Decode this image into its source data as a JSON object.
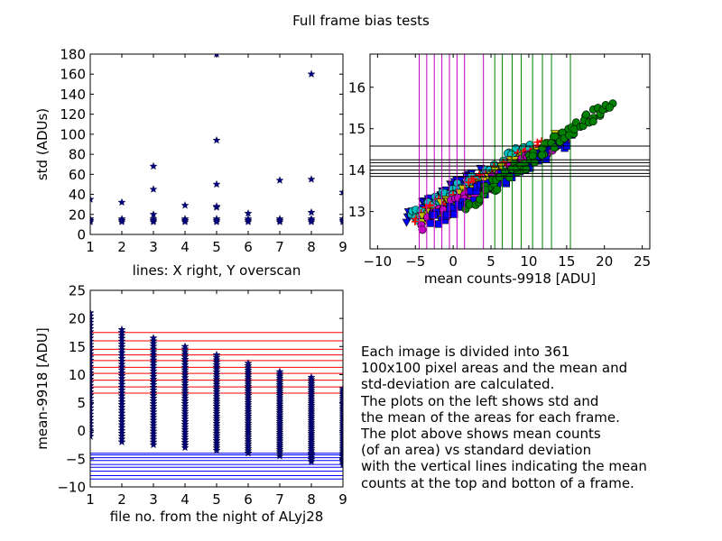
{
  "figure": {
    "title": "Full frame bias tests",
    "description_lines": [
      "Each image is divided into 361",
      "100x100 pixel areas and the mean and",
      "std-deviation are calculated.",
      "The plots on the left shows std and",
      "the mean of the areas for each frame.",
      "The plot above shows mean counts",
      "(of an area) vs standard deviation",
      "with the vertical lines indicating the mean",
      "counts at the top and botton of a frame."
    ]
  },
  "chart_data": [
    {
      "id": "std_vs_file",
      "type": "scatter",
      "title": "",
      "xlabel": "",
      "ylabel": "std (ADUs)",
      "xlim": [
        1,
        9
      ],
      "ylim": [
        0,
        180
      ],
      "xticks": [
        1,
        2,
        3,
        4,
        5,
        6,
        7,
        8,
        9
      ],
      "yticks": [
        0,
        20,
        40,
        60,
        80,
        100,
        120,
        140,
        160,
        180
      ],
      "marker": "star",
      "color": "#000080",
      "points": [
        {
          "x": 1,
          "y": 14
        },
        {
          "x": 1,
          "y": 12.5
        },
        {
          "x": 1,
          "y": 15.5
        },
        {
          "x": 1,
          "y": 35
        },
        {
          "x": 2,
          "y": 14
        },
        {
          "x": 2,
          "y": 12.5
        },
        {
          "x": 2,
          "y": 15.5
        },
        {
          "x": 2,
          "y": 32
        },
        {
          "x": 3,
          "y": 14
        },
        {
          "x": 3,
          "y": 12.5
        },
        {
          "x": 3,
          "y": 15.5
        },
        {
          "x": 3,
          "y": 20
        },
        {
          "x": 3,
          "y": 45
        },
        {
          "x": 3,
          "y": 68
        },
        {
          "x": 4,
          "y": 14
        },
        {
          "x": 4,
          "y": 12.5
        },
        {
          "x": 4,
          "y": 15.5
        },
        {
          "x": 4,
          "y": 29
        },
        {
          "x": 5,
          "y": 14
        },
        {
          "x": 5,
          "y": 12.5
        },
        {
          "x": 5,
          "y": 15.5
        },
        {
          "x": 5,
          "y": 27
        },
        {
          "x": 5,
          "y": 28
        },
        {
          "x": 5,
          "y": 50
        },
        {
          "x": 5,
          "y": 94
        },
        {
          "x": 5,
          "y": 180
        },
        {
          "x": 6,
          "y": 14
        },
        {
          "x": 6,
          "y": 12.5
        },
        {
          "x": 6,
          "y": 15.5
        },
        {
          "x": 6,
          "y": 21
        },
        {
          "x": 7,
          "y": 14
        },
        {
          "x": 7,
          "y": 12.5
        },
        {
          "x": 7,
          "y": 15.5
        },
        {
          "x": 7,
          "y": 54
        },
        {
          "x": 8,
          "y": 14
        },
        {
          "x": 8,
          "y": 12.5
        },
        {
          "x": 8,
          "y": 15.5
        },
        {
          "x": 8,
          "y": 22
        },
        {
          "x": 8,
          "y": 55
        },
        {
          "x": 8,
          "y": 160
        },
        {
          "x": 9,
          "y": 14
        },
        {
          "x": 9,
          "y": 12.5
        },
        {
          "x": 9,
          "y": 15.5
        },
        {
          "x": 9,
          "y": 42
        }
      ]
    },
    {
      "id": "std_vs_mean",
      "type": "scatter",
      "title": "",
      "xlabel": "mean counts-9918 [ADU]",
      "ylabel": "",
      "xlim": [
        -11,
        26
      ],
      "ylim": [
        12.1,
        16.8
      ],
      "xticks": [
        -10,
        -5,
        0,
        5,
        10,
        15,
        20,
        25
      ],
      "yticks": [
        13,
        14,
        15,
        16
      ],
      "series": [
        {
          "color": "#0000ff",
          "marker": "triangle-down",
          "x_range": [
            -6.0,
            4.0
          ],
          "y_at_start": 12.85,
          "slope": 0.115
        },
        {
          "color": "#00bfbf",
          "marker": "circle",
          "x_range": [
            -5.5,
            10.0
          ],
          "y_at_start": 12.85,
          "slope": 0.11
        },
        {
          "color": "#ff0000",
          "marker": "plus",
          "x_range": [
            -5.0,
            12.0
          ],
          "y_at_start": 12.8,
          "slope": 0.11
        },
        {
          "color": "#bfbf00",
          "marker": "triangle-down",
          "x_range": [
            -4.5,
            14.0
          ],
          "y_at_start": 12.75,
          "slope": 0.11
        },
        {
          "color": "#bf00bf",
          "marker": "circle",
          "x_range": [
            -4.0,
            15.0
          ],
          "y_at_start": 12.7,
          "slope": 0.11
        },
        {
          "color": "#0000ff",
          "marker": "square",
          "x_range": [
            -3.0,
            16.0
          ],
          "y_at_start": 12.75,
          "slope": 0.11
        },
        {
          "color": "#008000",
          "marker": "circle",
          "x_range": [
            2.0,
            21.0
          ],
          "y_at_start": 13.2,
          "slope": 0.13
        }
      ],
      "vlines": [
        {
          "x": -4.5,
          "color": "#bf00bf"
        },
        {
          "x": -3.5,
          "color": "#bf00bf"
        },
        {
          "x": -2.5,
          "color": "#bf00bf"
        },
        {
          "x": -1.5,
          "color": "#bf00bf"
        },
        {
          "x": -0.5,
          "color": "#bf00bf"
        },
        {
          "x": 0.5,
          "color": "#bf00bf"
        },
        {
          "x": 1.5,
          "color": "#bf00bf"
        },
        {
          "x": 4.0,
          "color": "#bf00bf"
        },
        {
          "x": 5.5,
          "color": "#008000"
        },
        {
          "x": 6.5,
          "color": "#008000"
        },
        {
          "x": 7.8,
          "color": "#008000"
        },
        {
          "x": 9.0,
          "color": "#008000"
        },
        {
          "x": 10.5,
          "color": "#008000"
        },
        {
          "x": 11.8,
          "color": "#008000"
        },
        {
          "x": 13.0,
          "color": "#008000"
        },
        {
          "x": 15.5,
          "color": "#008000"
        }
      ],
      "hlines": [
        14.58,
        14.25,
        14.18,
        14.1,
        14.0,
        13.92,
        13.85
      ],
      "hline_color": "#000000"
    },
    {
      "id": "mean_vs_file",
      "type": "scatter",
      "title": "lines: X right, Y overscan",
      "xlabel": "file no. from the night of ALyj28",
      "ylabel": "mean-9918 [ADU]",
      "xlim": [
        1,
        9
      ],
      "ylim": [
        -10,
        25
      ],
      "xticks": [
        1,
        2,
        3,
        4,
        5,
        6,
        7,
        8,
        9
      ],
      "yticks": [
        -10,
        -5,
        0,
        5,
        10,
        15,
        20,
        25
      ],
      "marker": "star",
      "color": "#000080",
      "columns": [
        {
          "x": 1,
          "ymin": -1.0,
          "ymax": 21.0
        },
        {
          "x": 2,
          "ymin": -2.0,
          "ymax": 18.0
        },
        {
          "x": 3,
          "ymin": -2.5,
          "ymax": 16.5
        },
        {
          "x": 4,
          "ymin": -3.0,
          "ymax": 15.0
        },
        {
          "x": 5,
          "ymin": -3.5,
          "ymax": 13.5
        },
        {
          "x": 6,
          "ymin": -4.0,
          "ymax": 12.0
        },
        {
          "x": 7,
          "ymin": -4.5,
          "ymax": 10.5
        },
        {
          "x": 8,
          "ymin": -5.5,
          "ymax": 9.5
        },
        {
          "x": 9,
          "ymin": -6.0,
          "ymax": 7.5
        }
      ],
      "red_hlines": [
        17.5,
        16.0,
        14.5,
        13.5,
        12.5,
        11.3,
        10.2,
        9.0,
        7.8,
        6.7
      ],
      "blue_hlines": [
        -4.0,
        -4.3,
        -4.8,
        -5.3,
        -6.0,
        -6.5,
        -7.2,
        -8.0,
        -8.6
      ],
      "red_color": "#ff0000",
      "blue_color": "#0000ff"
    }
  ]
}
